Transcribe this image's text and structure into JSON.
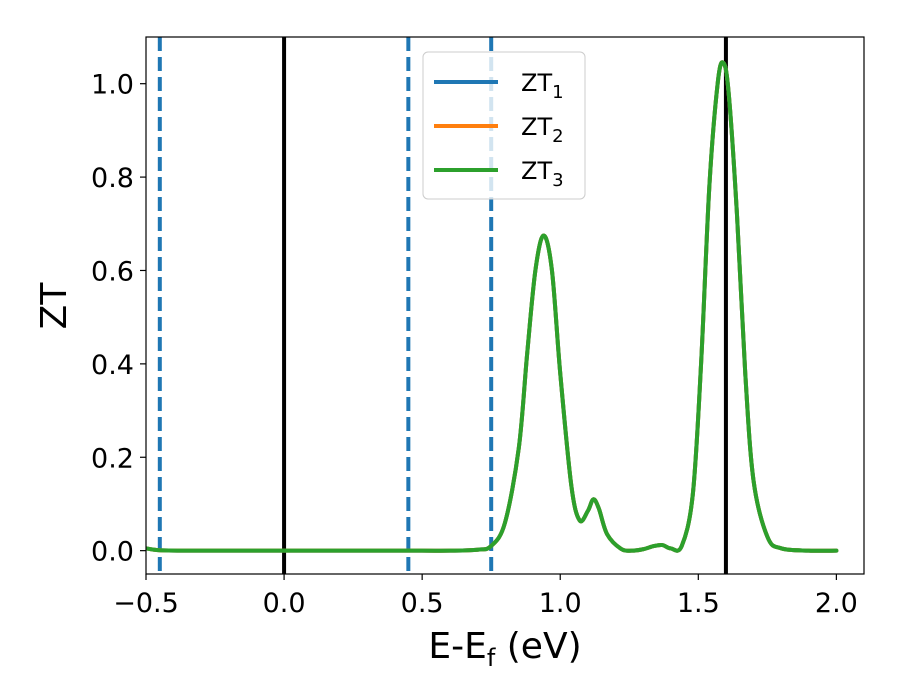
{
  "chart_data": {
    "type": "line",
    "xlabel": {
      "main": "E-E",
      "sub": "f",
      "tail": " (eV)"
    },
    "ylabel": "ZT",
    "xlim": [
      -0.5,
      2.1
    ],
    "ylim": [
      -0.05,
      1.1
    ],
    "x_ticks": [
      -0.5,
      0.0,
      0.5,
      1.0,
      1.5,
      2.0
    ],
    "x_tick_labels": [
      "−0.5",
      "0.0",
      "0.5",
      "1.0",
      "1.5",
      "2.0"
    ],
    "y_ticks": [
      0.0,
      0.2,
      0.4,
      0.6,
      0.8,
      1.0
    ],
    "y_tick_labels": [
      "0.0",
      "0.2",
      "0.4",
      "0.6",
      "0.8",
      "1.0"
    ],
    "legend_position": "top-center",
    "series": [
      {
        "name": {
          "base": "ZT",
          "sub": "1"
        },
        "color": "#1f77b4",
        "x": [
          -0.5,
          -0.45,
          -0.3,
          0.0,
          0.3,
          0.5,
          0.6,
          0.7,
          0.75,
          0.8,
          0.85,
          0.88,
          0.91,
          0.94,
          0.97,
          1.0,
          1.04,
          1.07,
          1.1,
          1.12,
          1.14,
          1.17,
          1.22,
          1.26,
          1.3,
          1.34,
          1.37,
          1.4,
          1.44,
          1.48,
          1.51,
          1.54,
          1.57,
          1.59,
          1.61,
          1.64,
          1.67,
          1.7,
          1.75,
          1.8,
          1.9,
          2.0
        ],
        "y": [
          0.005,
          0.001,
          0.0,
          0.0,
          0.0,
          0.0,
          0.0,
          0.002,
          0.01,
          0.06,
          0.22,
          0.42,
          0.6,
          0.675,
          0.6,
          0.38,
          0.14,
          0.065,
          0.085,
          0.11,
          0.09,
          0.035,
          0.004,
          0.0,
          0.003,
          0.01,
          0.012,
          0.005,
          0.01,
          0.12,
          0.4,
          0.78,
          1.0,
          1.045,
          0.98,
          0.72,
          0.38,
          0.15,
          0.03,
          0.005,
          0.0,
          0.0
        ]
      },
      {
        "name": {
          "base": "ZT",
          "sub": "2"
        },
        "color": "#ff7f0e",
        "x": [
          -0.5,
          -0.45,
          -0.3,
          0.0,
          0.3,
          0.5,
          0.6,
          0.7,
          0.75,
          0.8,
          0.85,
          0.88,
          0.91,
          0.94,
          0.97,
          1.0,
          1.04,
          1.07,
          1.1,
          1.12,
          1.14,
          1.17,
          1.22,
          1.26,
          1.3,
          1.34,
          1.37,
          1.4,
          1.44,
          1.48,
          1.51,
          1.54,
          1.57,
          1.59,
          1.61,
          1.64,
          1.67,
          1.7,
          1.75,
          1.8,
          1.9,
          2.0
        ],
        "y": [
          0.005,
          0.001,
          0.0,
          0.0,
          0.0,
          0.0,
          0.0,
          0.002,
          0.01,
          0.06,
          0.22,
          0.42,
          0.6,
          0.675,
          0.6,
          0.38,
          0.14,
          0.065,
          0.085,
          0.11,
          0.09,
          0.035,
          0.004,
          0.0,
          0.003,
          0.01,
          0.012,
          0.005,
          0.01,
          0.12,
          0.4,
          0.78,
          1.0,
          1.045,
          0.98,
          0.72,
          0.38,
          0.15,
          0.03,
          0.005,
          0.0,
          0.0
        ]
      },
      {
        "name": {
          "base": "ZT",
          "sub": "3"
        },
        "color": "#2ca02c",
        "x": [
          -0.5,
          -0.45,
          -0.3,
          0.0,
          0.3,
          0.5,
          0.6,
          0.7,
          0.75,
          0.8,
          0.85,
          0.88,
          0.91,
          0.94,
          0.97,
          1.0,
          1.04,
          1.07,
          1.1,
          1.12,
          1.14,
          1.17,
          1.22,
          1.26,
          1.3,
          1.34,
          1.37,
          1.4,
          1.44,
          1.48,
          1.51,
          1.54,
          1.57,
          1.59,
          1.61,
          1.64,
          1.67,
          1.7,
          1.75,
          1.8,
          1.9,
          2.0
        ],
        "y": [
          0.005,
          0.001,
          0.0,
          0.0,
          0.0,
          0.0,
          0.0,
          0.002,
          0.01,
          0.06,
          0.22,
          0.42,
          0.6,
          0.675,
          0.6,
          0.38,
          0.14,
          0.065,
          0.085,
          0.11,
          0.09,
          0.035,
          0.004,
          0.0,
          0.003,
          0.01,
          0.012,
          0.005,
          0.01,
          0.12,
          0.4,
          0.78,
          1.0,
          1.045,
          0.98,
          0.72,
          0.38,
          0.15,
          0.03,
          0.005,
          0.0,
          0.0
        ]
      }
    ],
    "vertical_lines": [
      {
        "x": -0.45,
        "style": "dashed",
        "color": "#1f77b4"
      },
      {
        "x": 0.0,
        "style": "solid",
        "color": "#000000"
      },
      {
        "x": 0.45,
        "style": "dashed",
        "color": "#1f77b4"
      },
      {
        "x": 0.75,
        "style": "dashed",
        "color": "#1f77b4"
      },
      {
        "x": 1.6,
        "style": "solid",
        "color": "#000000"
      }
    ]
  }
}
